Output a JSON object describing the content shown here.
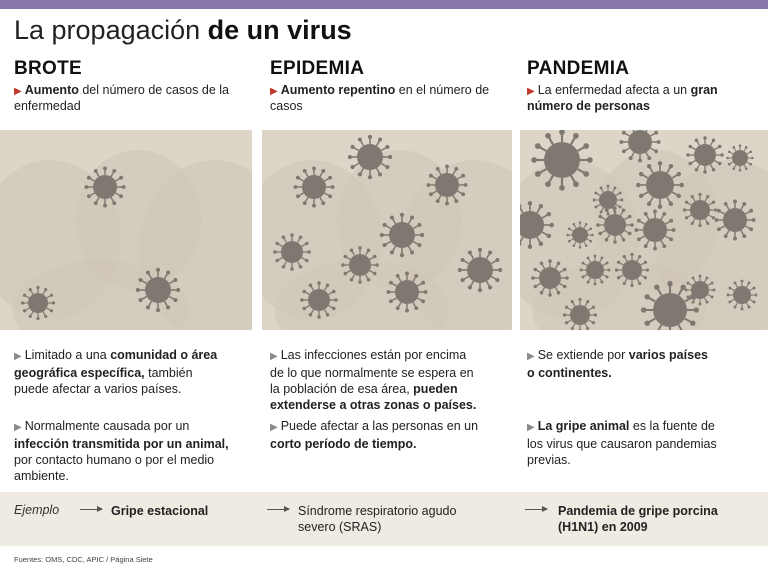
{
  "title": {
    "regular": "La propagación",
    "bold": "de un virus"
  },
  "columns": [
    {
      "heading": "BROTE",
      "intro_bold": "Aumento",
      "intro_rest": " del número de casos de la enfermedad",
      "bullet1": {
        "pre": "Limitado a una ",
        "bold": "comunidad o área geográfica específica,",
        "post": " también puede afectar a varios países."
      },
      "bullet2": {
        "pre": "Normalmente causada por un ",
        "bold": "infección transmitida por un animal,",
        "post": " por contacto humano o por el medio ambiente."
      },
      "example": "Gripe estacional"
    },
    {
      "heading": "EPIDEMIA",
      "intro_bold": "Aumento repentino",
      "intro_rest": " en el número de casos",
      "bullet1": {
        "pre": "Las infecciones están por encima de lo que normalmente se espera en la población de esa área, ",
        "bold": "pueden extenderse a otras zonas o países.",
        "post": ""
      },
      "bullet2": {
        "pre": "Puede afectar a las personas en un ",
        "bold": "corto período de tiempo.",
        "post": ""
      },
      "example": "Síndrome respiratorio agudo severo (SRAS)"
    },
    {
      "heading": "PANDEMIA",
      "intro_pre": "La enfermedad afecta a un ",
      "intro_bold": "gran número de personas",
      "bullet1": {
        "pre": "Se extiende por ",
        "bold": "varios países o continentes.",
        "post": ""
      },
      "bullet2": {
        "pre": "",
        "bold": "La gripe animal",
        "post": " es la fuente de los virus que causaron pandemias previas."
      },
      "example": "Pandemia de gripe porcina (H1N1) en 2009"
    }
  ],
  "example_label": "Ejemplo",
  "sources": "Fuentes: OMS, CDC, APIC / Página Siete",
  "colors": {
    "accent_bar": "#8a78ad",
    "marker_red": "#c0392b",
    "virus": "#7f7871",
    "panel_bg": "#ddd5c8"
  }
}
